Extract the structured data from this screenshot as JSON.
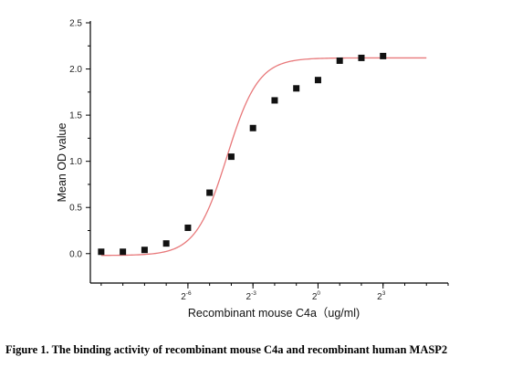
{
  "caption": "Figure 1. The binding activity of recombinant mouse C4a and recombinant human MASP2",
  "chart_data": {
    "type": "scatter",
    "xlabel": "Recombinant mouse C4a（ug/ml)",
    "ylabel": "Mean OD value",
    "x_scale": "log2",
    "xlim": [
      -10.5,
      6
    ],
    "ylim": [
      -0.2,
      2.5
    ],
    "y_ticks": [
      "0.0",
      "0.5",
      "1.0",
      "1.5",
      "2.0",
      "2.5"
    ],
    "x_ticks": [
      {
        "base": "2",
        "exp": "-6",
        "x": -6
      },
      {
        "base": "2",
        "exp": "-3",
        "x": -3
      },
      {
        "base": "2",
        "exp": "0",
        "x": 0
      },
      {
        "base": "2",
        "exp": "3",
        "x": 3
      }
    ],
    "points": [
      {
        "x": -10,
        "y": 0.02
      },
      {
        "x": -9,
        "y": 0.02
      },
      {
        "x": -8,
        "y": 0.04
      },
      {
        "x": -7,
        "y": 0.11
      },
      {
        "x": -6,
        "y": 0.28
      },
      {
        "x": -5,
        "y": 0.66
      },
      {
        "x": -4,
        "y": 1.05
      },
      {
        "x": -3,
        "y": 1.36
      },
      {
        "x": -2,
        "y": 1.66
      },
      {
        "x": -1,
        "y": 1.79
      },
      {
        "x": 0,
        "y": 1.88
      },
      {
        "x": 1,
        "y": 2.09
      },
      {
        "x": 2,
        "y": 2.12
      },
      {
        "x": 3,
        "y": 2.14
      }
    ],
    "fit_curve": {
      "bottom": -0.02,
      "top": 2.12,
      "log_ec50": -4.2,
      "slope": 0.6,
      "color": "#e8787a"
    },
    "marker_color": "#111111",
    "grid": false,
    "legend": "none"
  }
}
